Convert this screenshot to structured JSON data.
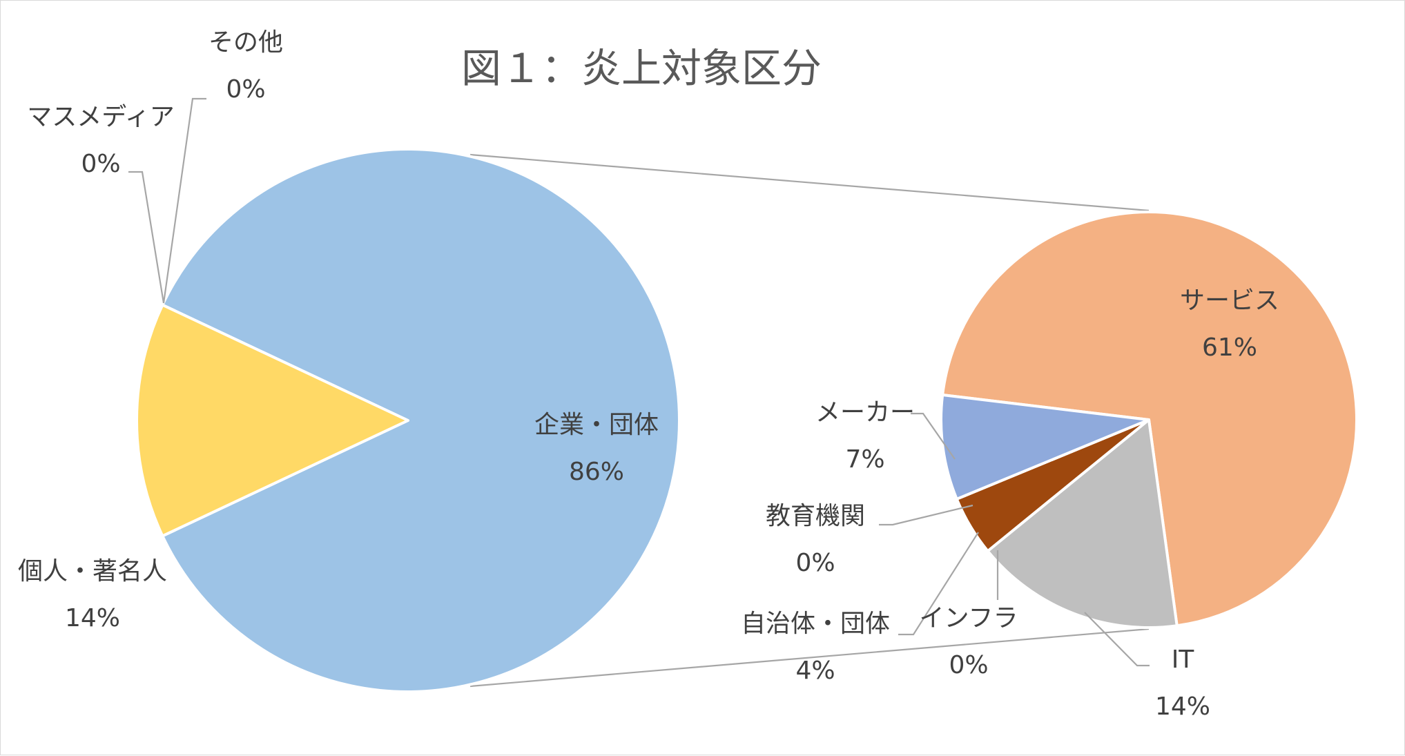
{
  "chart_data": {
    "type": "pie",
    "subtype": "pie-of-pie",
    "title": "図１：炎上対象区分",
    "primary": {
      "slices": [
        {
          "name": "企業・団体",
          "value": 86,
          "label": "86%",
          "color": "#9DC3E6",
          "aggregate": true
        },
        {
          "name": "個人・著名人",
          "value": 14,
          "label": "14%",
          "color": "#FFD966"
        },
        {
          "name": "マスメディア",
          "value": 0,
          "label": "0%",
          "color": "#A5A5A5"
        },
        {
          "name": "その他",
          "value": 0,
          "label": "0%",
          "color": "#70AD47"
        }
      ]
    },
    "secondary": {
      "slices": [
        {
          "name": "サービス",
          "value": 61,
          "label": "61%",
          "color": "#F4B183"
        },
        {
          "name": "IT",
          "value": 14,
          "label": "14%",
          "color": "#BFBFBF"
        },
        {
          "name": "インフラ",
          "value": 0,
          "label": "0%",
          "color": "#FFC000"
        },
        {
          "name": "自治体・団体",
          "value": 4,
          "label": "4%",
          "color": "#9E480E"
        },
        {
          "name": "教育機関",
          "value": 0,
          "label": "0%",
          "color": "#5B9BD5"
        },
        {
          "name": "メーカー",
          "value": 7,
          "label": "7%",
          "color": "#8FAADC"
        }
      ]
    },
    "legend": "none",
    "grid": false
  }
}
